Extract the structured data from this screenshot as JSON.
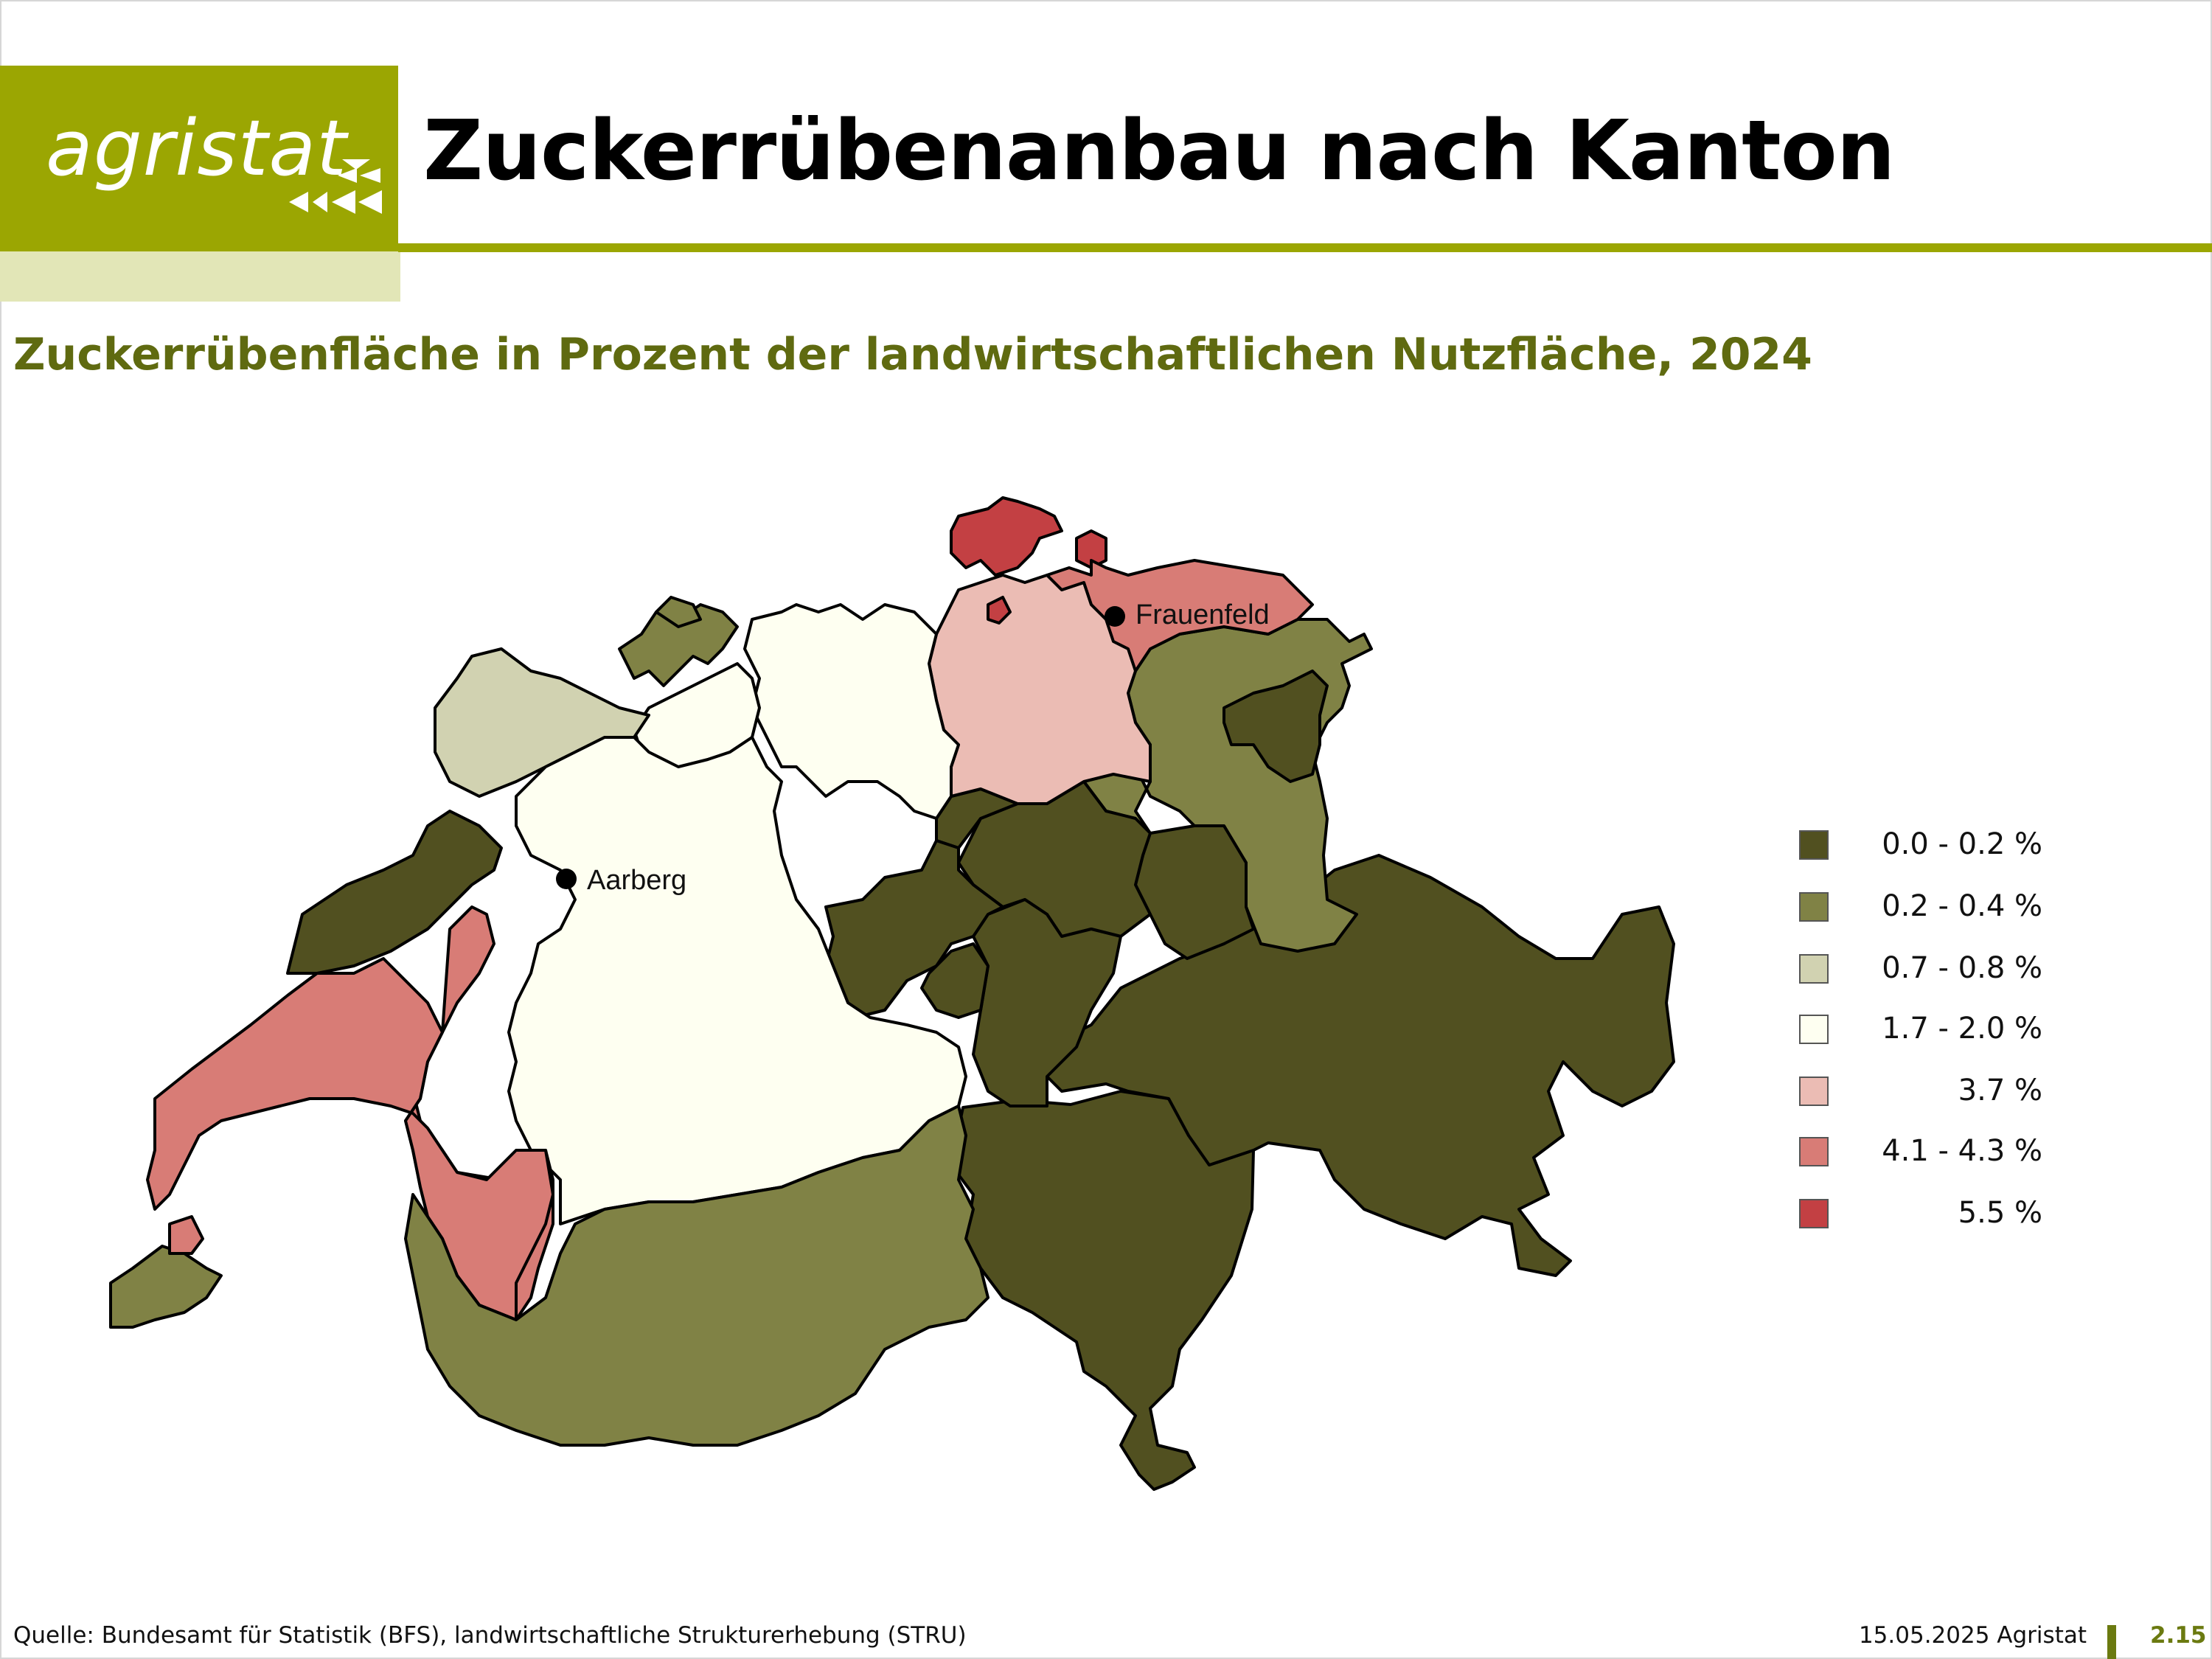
{
  "brand": {
    "logo_text": "agristat"
  },
  "header": {
    "title": "Zuckerrübenanbau nach Kanton"
  },
  "subtitle": "Zuckerrübenfläche in Prozent der landwirtschaftlichen Nutzfläche, 2024",
  "colors": {
    "brand_green": "#9ba602",
    "class_0": "#515020",
    "class_1": "#808245",
    "class_2": "#d1d2b1",
    "class_3": "#fefff1",
    "class_4": "#ebbcb4",
    "class_5": "#d87c76",
    "class_6": "#c34043"
  },
  "legend": [
    {
      "label": "0.0 - 0.2 %",
      "color": "#515020"
    },
    {
      "label": "0.2 - 0.4 %",
      "color": "#808245"
    },
    {
      "label": "0.7 - 0.8 %",
      "color": "#d1d2b1"
    },
    {
      "label": "1.7 - 2.0 %",
      "color": "#fefff1"
    },
    {
      "label": "3.7 %",
      "color": "#ebbcb4"
    },
    {
      "label": "4.1 - 4.3 %",
      "color": "#d87c76"
    },
    {
      "label": "5.5 %",
      "color": "#c34043"
    }
  ],
  "map": {
    "markers": [
      {
        "name": "Frauenfeld"
      },
      {
        "name": "Aarberg"
      }
    ]
  },
  "footer": {
    "source": "Quelle: Bundesamt für Statistik (BFS), landwirtschaftliche Strukturerhebung (STRU)",
    "date": "15.05.2025 Agristat",
    "page": "2.15"
  }
}
